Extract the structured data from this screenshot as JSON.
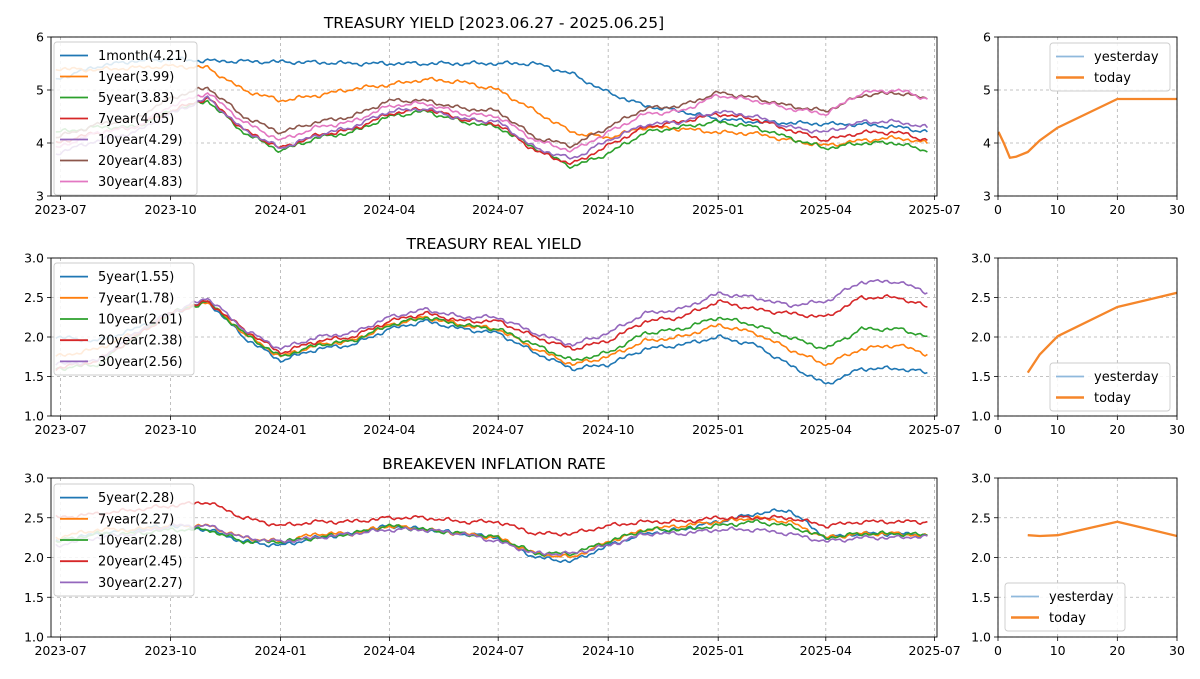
{
  "chart_data": [
    {
      "type": "line",
      "title": "TREASURY YIELD [2023.06.27 - 2025.06.25]",
      "ylim": [
        3,
        6
      ],
      "yticks": [
        "3",
        "4",
        "5",
        "6"
      ],
      "x_ticks": [
        "2023-07",
        "2023-10",
        "2024-01",
        "2024-04",
        "2024-07",
        "2024-10",
        "2025-01",
        "2025-04",
        "2025-07"
      ],
      "x_tick_dates": [
        "2023-07-01",
        "2023-10-01",
        "2024-01-01",
        "2024-04-01",
        "2024-07-01",
        "2024-10-01",
        "2025-01-01",
        "2025-04-01",
        "2025-07-01"
      ],
      "xlim": [
        "2023-06-27",
        "2025-06-25"
      ],
      "grid": true,
      "legend_position": "top-left",
      "x": [
        "2023-06-27",
        "2023-08-01",
        "2023-09-01",
        "2023-10-01",
        "2023-11-01",
        "2023-12-01",
        "2024-01-01",
        "2024-02-01",
        "2024-03-01",
        "2024-04-01",
        "2024-05-01",
        "2024-06-01",
        "2024-07-01",
        "2024-08-01",
        "2024-09-01",
        "2024-10-01",
        "2024-11-01",
        "2024-12-01",
        "2025-01-01",
        "2025-02-01",
        "2025-03-01",
        "2025-04-01",
        "2025-05-01",
        "2025-06-01",
        "2025-06-25"
      ],
      "series": [
        {
          "name": "1month(4.21)",
          "color": "#1f77b4",
          "values": [
            5.2,
            5.45,
            5.55,
            5.58,
            5.55,
            5.54,
            5.53,
            5.52,
            5.5,
            5.5,
            5.5,
            5.5,
            5.5,
            5.5,
            5.3,
            4.95,
            4.7,
            4.6,
            4.45,
            4.4,
            4.38,
            4.36,
            4.35,
            4.3,
            4.21
          ]
        },
        {
          "name": "1year(3.99)",
          "color": "#ff7f0e",
          "values": [
            5.4,
            5.38,
            5.42,
            5.45,
            5.42,
            5.0,
            4.8,
            4.9,
            5.02,
            5.1,
            5.2,
            5.15,
            5.0,
            4.6,
            4.2,
            4.1,
            4.3,
            4.27,
            4.2,
            4.18,
            4.05,
            3.95,
            4.05,
            4.1,
            3.99
          ]
        },
        {
          "name": "5year(3.83)",
          "color": "#2ca02c",
          "values": [
            4.2,
            4.3,
            4.3,
            4.6,
            4.8,
            4.2,
            3.85,
            4.1,
            4.2,
            4.5,
            4.6,
            4.4,
            4.3,
            3.9,
            3.55,
            3.8,
            4.2,
            4.3,
            4.4,
            4.3,
            4.1,
            3.9,
            4.0,
            4.0,
            3.83
          ]
        },
        {
          "name": "7year(4.05)",
          "color": "#d62728",
          "values": [
            4.0,
            4.2,
            4.3,
            4.6,
            4.85,
            4.25,
            3.9,
            4.15,
            4.25,
            4.55,
            4.65,
            4.45,
            4.35,
            3.85,
            3.6,
            3.95,
            4.3,
            4.4,
            4.55,
            4.45,
            4.25,
            4.05,
            4.2,
            4.2,
            4.05
          ]
        },
        {
          "name": "10year(4.29)",
          "color": "#9467bd",
          "values": [
            3.8,
            4.05,
            4.2,
            4.55,
            4.85,
            4.25,
            3.9,
            4.15,
            4.3,
            4.6,
            4.65,
            4.45,
            4.4,
            3.9,
            3.7,
            4.05,
            4.35,
            4.4,
            4.6,
            4.5,
            4.3,
            4.2,
            4.4,
            4.4,
            4.29
          ]
        },
        {
          "name": "20year(4.83)",
          "color": "#8c564b",
          "values": [
            4.1,
            4.35,
            4.45,
            4.85,
            5.05,
            4.5,
            4.2,
            4.4,
            4.5,
            4.8,
            4.8,
            4.65,
            4.6,
            4.1,
            3.95,
            4.3,
            4.65,
            4.7,
            4.95,
            4.85,
            4.7,
            4.6,
            4.9,
            4.95,
            4.83
          ]
        },
        {
          "name": "30year(4.83)",
          "color": "#e377c2",
          "values": [
            3.9,
            4.2,
            4.3,
            4.7,
            4.95,
            4.4,
            4.05,
            4.3,
            4.4,
            4.7,
            4.75,
            4.55,
            4.5,
            4.05,
            3.85,
            4.2,
            4.55,
            4.6,
            4.9,
            4.8,
            4.65,
            4.55,
            4.95,
            5.0,
            4.83
          ]
        }
      ]
    },
    {
      "type": "line",
      "ylim": [
        3,
        6
      ],
      "yticks": [
        "3",
        "4",
        "5",
        "6"
      ],
      "xlim": [
        0,
        30
      ],
      "x_ticks": [
        "0",
        "10",
        "20",
        "30"
      ],
      "grid": true,
      "legend_position": "top-right",
      "series": [
        {
          "name": "yesterday",
          "color": "#8fb9dc",
          "x": [
            0.083,
            1,
            2,
            3,
            5,
            7,
            10,
            20,
            30
          ],
          "values": [
            4.21,
            3.99,
            3.72,
            3.74,
            3.83,
            4.05,
            4.29,
            4.83,
            4.83
          ]
        },
        {
          "name": "today",
          "color": "#f5862a",
          "x": [
            0.083,
            1,
            2,
            3,
            5,
            7,
            10,
            20,
            30
          ],
          "values": [
            4.21,
            3.99,
            3.72,
            3.74,
            3.83,
            4.05,
            4.29,
            4.83,
            4.83
          ]
        }
      ]
    },
    {
      "type": "line",
      "title": "TREASURY REAL YIELD",
      "ylim": [
        1.0,
        3.0
      ],
      "yticks": [
        "1.0",
        "1.5",
        "2.0",
        "2.5",
        "3.0"
      ],
      "x_ticks": [
        "2023-07",
        "2023-10",
        "2024-01",
        "2024-04",
        "2024-07",
        "2024-10",
        "2025-01",
        "2025-04",
        "2025-07"
      ],
      "x_tick_dates": [
        "2023-07-01",
        "2023-10-01",
        "2024-01-01",
        "2024-04-01",
        "2024-07-01",
        "2024-10-01",
        "2025-01-01",
        "2025-04-01",
        "2025-07-01"
      ],
      "xlim": [
        "2023-06-27",
        "2025-06-25"
      ],
      "grid": true,
      "legend_position": "top-left",
      "x": [
        "2023-06-27",
        "2023-08-01",
        "2023-09-01",
        "2023-10-01",
        "2023-11-01",
        "2023-12-01",
        "2024-01-01",
        "2024-02-01",
        "2024-03-01",
        "2024-04-01",
        "2024-05-01",
        "2024-06-01",
        "2024-07-01",
        "2024-08-01",
        "2024-09-01",
        "2024-10-01",
        "2024-11-01",
        "2024-12-01",
        "2025-01-01",
        "2025-02-01",
        "2025-03-01",
        "2025-04-01",
        "2025-05-01",
        "2025-06-01",
        "2025-06-25"
      ],
      "series": [
        {
          "name": "5year(1.55)",
          "color": "#1f77b4",
          "values": [
            2.0,
            1.95,
            2.1,
            2.3,
            2.45,
            2.0,
            1.7,
            1.85,
            1.9,
            2.1,
            2.2,
            2.1,
            2.05,
            1.8,
            1.6,
            1.65,
            1.85,
            1.9,
            2.0,
            1.9,
            1.65,
            1.4,
            1.6,
            1.6,
            1.55
          ]
        },
        {
          "name": "7year(1.78)",
          "color": "#ff7f0e",
          "values": [
            1.75,
            1.85,
            2.05,
            2.3,
            2.45,
            2.05,
            1.75,
            1.9,
            1.95,
            2.15,
            2.25,
            2.15,
            2.1,
            1.85,
            1.65,
            1.75,
            1.95,
            2.0,
            2.15,
            2.05,
            1.85,
            1.65,
            1.85,
            1.9,
            1.78
          ]
        },
        {
          "name": "10year(2.01)",
          "color": "#2ca02c",
          "values": [
            1.6,
            1.65,
            2.0,
            2.3,
            2.45,
            2.05,
            1.75,
            1.9,
            1.95,
            2.15,
            2.25,
            2.15,
            2.1,
            1.9,
            1.7,
            1.8,
            2.05,
            2.1,
            2.25,
            2.15,
            2.0,
            1.85,
            2.1,
            2.1,
            2.01
          ]
        },
        {
          "name": "20year(2.38)",
          "color": "#d62728",
          "values": [
            1.6,
            1.7,
            2.0,
            2.3,
            2.45,
            2.1,
            1.8,
            1.95,
            2.0,
            2.2,
            2.3,
            2.2,
            2.2,
            2.0,
            1.85,
            1.95,
            2.2,
            2.25,
            2.45,
            2.35,
            2.3,
            2.25,
            2.5,
            2.5,
            2.38
          ]
        },
        {
          "name": "30year(2.56)",
          "color": "#9467bd",
          "values": [
            1.65,
            1.7,
            2.05,
            2.3,
            2.5,
            2.1,
            1.85,
            2.0,
            2.05,
            2.25,
            2.35,
            2.25,
            2.25,
            2.05,
            1.9,
            2.05,
            2.3,
            2.35,
            2.55,
            2.5,
            2.4,
            2.45,
            2.7,
            2.7,
            2.56
          ]
        }
      ]
    },
    {
      "type": "line",
      "ylim": [
        1.0,
        3.0
      ],
      "yticks": [
        "1.0",
        "1.5",
        "2.0",
        "2.5",
        "3.0"
      ],
      "xlim": [
        0,
        30
      ],
      "x_ticks": [
        "0",
        "10",
        "20",
        "30"
      ],
      "grid": true,
      "legend_position": "bottom-right",
      "series": [
        {
          "name": "yesterday",
          "color": "#8fb9dc",
          "x": [
            5,
            7,
            10,
            20,
            30
          ],
          "values": [
            1.55,
            1.78,
            2.01,
            2.38,
            2.56
          ]
        },
        {
          "name": "today",
          "color": "#f5862a",
          "x": [
            5,
            7,
            10,
            20,
            30
          ],
          "values": [
            1.55,
            1.78,
            2.01,
            2.38,
            2.56
          ]
        }
      ]
    },
    {
      "type": "line",
      "title": "BREAKEVEN INFLATION RATE",
      "ylim": [
        1.0,
        3.0
      ],
      "yticks": [
        "1.0",
        "1.5",
        "2.0",
        "2.5",
        "3.0"
      ],
      "x_ticks": [
        "2023-07",
        "2023-10",
        "2024-01",
        "2024-04",
        "2024-07",
        "2024-10",
        "2025-01",
        "2025-04",
        "2025-07"
      ],
      "x_tick_dates": [
        "2023-07-01",
        "2023-10-01",
        "2024-01-01",
        "2024-04-01",
        "2024-07-01",
        "2024-10-01",
        "2025-01-01",
        "2025-04-01",
        "2025-07-01"
      ],
      "xlim": [
        "2023-06-27",
        "2025-06-25"
      ],
      "grid": true,
      "legend_position": "top-left",
      "x": [
        "2023-06-27",
        "2023-08-01",
        "2023-09-01",
        "2023-10-01",
        "2023-11-01",
        "2023-12-01",
        "2024-01-01",
        "2024-02-01",
        "2024-03-01",
        "2024-04-01",
        "2024-05-01",
        "2024-06-01",
        "2024-07-01",
        "2024-08-01",
        "2024-09-01",
        "2024-10-01",
        "2024-11-01",
        "2024-12-01",
        "2025-01-01",
        "2025-02-01",
        "2025-03-01",
        "2025-04-01",
        "2025-05-01",
        "2025-06-01",
        "2025-06-25"
      ],
      "series": [
        {
          "name": "5year(2.28)",
          "color": "#1f77b4",
          "values": [
            2.2,
            2.3,
            2.35,
            2.4,
            2.35,
            2.2,
            2.15,
            2.25,
            2.3,
            2.4,
            2.35,
            2.3,
            2.25,
            2.0,
            1.95,
            2.15,
            2.3,
            2.35,
            2.45,
            2.55,
            2.6,
            2.25,
            2.3,
            2.3,
            2.28
          ]
        },
        {
          "name": "7year(2.27)",
          "color": "#ff7f0e",
          "values": [
            2.25,
            2.35,
            2.35,
            2.4,
            2.4,
            2.25,
            2.2,
            2.3,
            2.3,
            2.4,
            2.35,
            2.3,
            2.25,
            2.05,
            2.0,
            2.2,
            2.35,
            2.4,
            2.45,
            2.5,
            2.45,
            2.25,
            2.3,
            2.3,
            2.27
          ]
        },
        {
          "name": "10year(2.28)",
          "color": "#2ca02c",
          "values": [
            2.2,
            2.3,
            2.3,
            2.35,
            2.35,
            2.2,
            2.2,
            2.25,
            2.3,
            2.4,
            2.35,
            2.3,
            2.25,
            2.05,
            2.05,
            2.2,
            2.35,
            2.35,
            2.4,
            2.45,
            2.4,
            2.25,
            2.3,
            2.3,
            2.28
          ]
        },
        {
          "name": "20year(2.45)",
          "color": "#d62728",
          "values": [
            2.5,
            2.55,
            2.6,
            2.65,
            2.7,
            2.5,
            2.4,
            2.45,
            2.45,
            2.5,
            2.5,
            2.45,
            2.45,
            2.3,
            2.3,
            2.4,
            2.45,
            2.45,
            2.5,
            2.5,
            2.5,
            2.4,
            2.45,
            2.45,
            2.45
          ]
        },
        {
          "name": "30year(2.27)",
          "color": "#9467bd",
          "values": [
            2.15,
            2.25,
            2.3,
            2.4,
            2.4,
            2.25,
            2.2,
            2.25,
            2.3,
            2.35,
            2.35,
            2.3,
            2.2,
            2.05,
            2.05,
            2.15,
            2.3,
            2.3,
            2.35,
            2.35,
            2.3,
            2.2,
            2.25,
            2.25,
            2.27
          ]
        }
      ]
    },
    {
      "type": "line",
      "ylim": [
        1.0,
        3.0
      ],
      "yticks": [
        "1.0",
        "1.5",
        "2.0",
        "2.5",
        "3.0"
      ],
      "xlim": [
        0,
        30
      ],
      "x_ticks": [
        "0",
        "10",
        "20",
        "30"
      ],
      "grid": true,
      "legend_position": "bottom-left",
      "series": [
        {
          "name": "yesterday",
          "color": "#8fb9dc",
          "x": [
            5,
            7,
            10,
            20,
            30
          ],
          "values": [
            2.28,
            2.27,
            2.28,
            2.45,
            2.27
          ]
        },
        {
          "name": "today",
          "color": "#f5862a",
          "x": [
            5,
            7,
            10,
            20,
            30
          ],
          "values": [
            2.28,
            2.27,
            2.28,
            2.45,
            2.27
          ]
        }
      ]
    }
  ]
}
